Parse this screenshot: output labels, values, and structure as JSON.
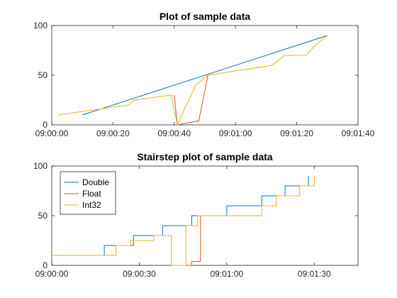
{
  "chart_data": [
    {
      "type": "line",
      "title": "Plot of sample data",
      "xlabel": "",
      "ylabel": "",
      "xlim": [
        "09:00:00",
        "09:01:40"
      ],
      "ylim": [
        0,
        100
      ],
      "x_ticks": [
        "09:00:00",
        "09:00:20",
        "09:00:40",
        "09:01:00",
        "09:01:20",
        "09:01:40"
      ],
      "y_ticks": [
        0,
        50,
        100
      ],
      "grid": false,
      "series": [
        {
          "color": "#0072BD",
          "x": [
            "09:00:10",
            "09:01:30"
          ],
          "y": [
            10,
            90
          ]
        },
        {
          "color": "#D95319",
          "x": [
            "09:00:40",
            "09:00:41",
            "09:00:48",
            "09:00:51"
          ],
          "y": [
            30,
            0,
            4,
            50
          ]
        },
        {
          "color": "#EDB120",
          "x": [
            "09:00:02",
            "09:00:25",
            "09:00:27",
            "09:00:39",
            "09:00:41",
            "09:00:47",
            "09:00:51",
            "09:01:12",
            "09:01:16",
            "09:01:23",
            "09:01:26",
            "09:01:30"
          ],
          "y": [
            10,
            20,
            25,
            30,
            0,
            40,
            50,
            60,
            70,
            70,
            80,
            90
          ]
        }
      ]
    },
    {
      "type": "line",
      "style": "stairs",
      "title": "Stairstep plot of sample data",
      "xlabel": "",
      "ylabel": "",
      "xlim": [
        "09:00:00",
        "09:01:45"
      ],
      "ylim": [
        0,
        100
      ],
      "x_ticks": [
        "09:00:00",
        "09:00:30",
        "09:01:00",
        "09:01:30"
      ],
      "y_ticks": [
        0,
        50,
        100
      ],
      "grid": false,
      "legend": {
        "location": "top-left"
      },
      "series": [
        {
          "name": "Double",
          "color": "#0072BD",
          "x": [
            "09:00:00",
            "09:00:18",
            "09:00:28",
            "09:00:38",
            "09:00:48",
            "09:01:00",
            "09:01:12",
            "09:01:20",
            "09:01:28"
          ],
          "y": [
            10,
            20,
            30,
            40,
            50,
            60,
            70,
            80,
            90
          ]
        },
        {
          "name": "Float",
          "color": "#D95319",
          "x": [
            "09:00:41",
            "09:00:48",
            "09:00:51"
          ],
          "y": [
            0,
            4,
            50
          ]
        },
        {
          "name": "Int32",
          "color": "#EDB120",
          "x": [
            "09:00:00",
            "09:00:22",
            "09:00:27",
            "09:00:35",
            "09:00:41",
            "09:00:46",
            "09:00:50",
            "09:01:00",
            "09:01:12",
            "09:01:17",
            "09:01:25",
            "09:01:30"
          ],
          "y": [
            10,
            20,
            25,
            30,
            0,
            40,
            50,
            50,
            60,
            70,
            80,
            90
          ]
        }
      ]
    }
  ]
}
